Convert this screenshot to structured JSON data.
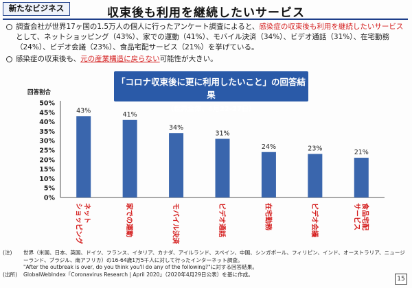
{
  "header": {
    "tag": "新たなビジネス",
    "title": "収束後も利用を継続したいサービス"
  },
  "bullets": [
    {
      "plain_1": "調査会社が世界17ヶ国の1.5万人の個人に行ったアンケート調査によると、",
      "red_1": "感染症の収束後も利用を継続したいサービス",
      "plain_2": "として、ネットショッピング（43%）、家での運動（41%）、モバイル決済（34%）、ビデオ通話（31%）、在宅勤務（24%）、ビデオ会議（23%）、食品宅配サービス（21%）を挙げている。"
    },
    {
      "plain_1": "感染症の収束後も、",
      "red_1": "元の産業構造に戻らない",
      "plain_2": "可能性が大きい。"
    }
  ],
  "chart_title": {
    "line1": "「コロナ収束後に更に利用したいこと」の回答結果",
    "line2": "（世界全体、4月22-27日）"
  },
  "chart_data": {
    "type": "bar",
    "ylabel": "回答割合",
    "ylim": [
      0,
      50
    ],
    "yticks": [
      "0%",
      "5%",
      "10%",
      "15%",
      "20%",
      "25%",
      "30%",
      "35%",
      "40%",
      "45%",
      "50%"
    ],
    "categories": [
      [
        "ネット",
        "ショッピング"
      ],
      [
        "家での運動"
      ],
      [
        "モバイル決済"
      ],
      [
        "ビデオ通話"
      ],
      [
        "在宅勤務"
      ],
      [
        "ビデオ会議"
      ],
      [
        "食品宅配",
        "サービス"
      ]
    ],
    "values": [
      43,
      41,
      34,
      31,
      24,
      23,
      21
    ],
    "value_labels": [
      "43%",
      "41%",
      "34%",
      "31%",
      "24%",
      "23%",
      "21%"
    ],
    "bar_color": "#3a66ad",
    "category_color": "#d41c1c",
    "grid": false
  },
  "notes": [
    {
      "key": "(注)",
      "text": "世界（米国、日本、英国、ドイツ、フランス、イタリア、カナダ、アイルランド、スペイン、中国、シンガポール、フィリピン、インド、オーストラリア、ニュージーランド、ブラジル、南アフリカ）の16-64歳1万5千人に対して行ったインターネット調査。"
    },
    {
      "key": "",
      "text": "\"After the outbreak is over, do you think you'll do any of the following?\"に対する回答結果。"
    },
    {
      "key": "(出所)",
      "text": "GlobalWebIndex「Coronavirus Research | April 2020」（2020年4月29日公表）を基に作成。"
    }
  ],
  "page_number": "15"
}
